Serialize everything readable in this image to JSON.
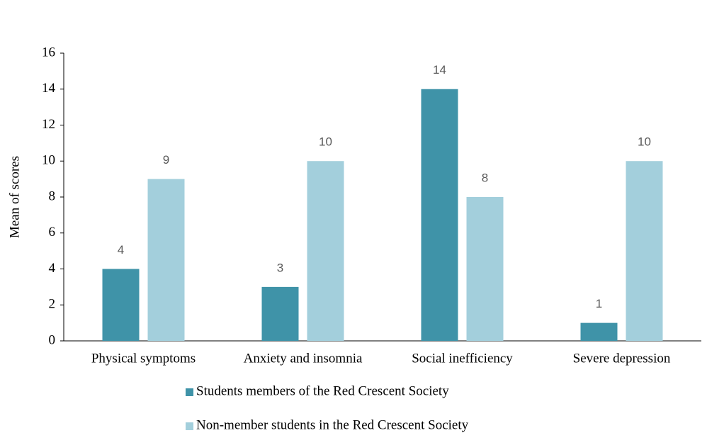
{
  "chart_data": {
    "type": "bar",
    "y_label": "Mean of scores",
    "categories": [
      "Physical symptoms",
      "Anxiety and insomnia",
      "Social inefficiency",
      "Severe depression"
    ],
    "series": [
      {
        "name": "Students members of the Red Crescent Society",
        "color": "#3f93a8",
        "values": [
          4,
          3,
          14,
          1
        ]
      },
      {
        "name": "Non-member students in the Red Crescent Society",
        "color": "#a3cfdc",
        "values": [
          9,
          10,
          8,
          10
        ]
      }
    ],
    "ylim": [
      0,
      16
    ],
    "yticks": [
      0,
      2,
      4,
      6,
      8,
      10,
      12,
      14,
      16
    ],
    "grid": false,
    "legend": "bottom"
  }
}
